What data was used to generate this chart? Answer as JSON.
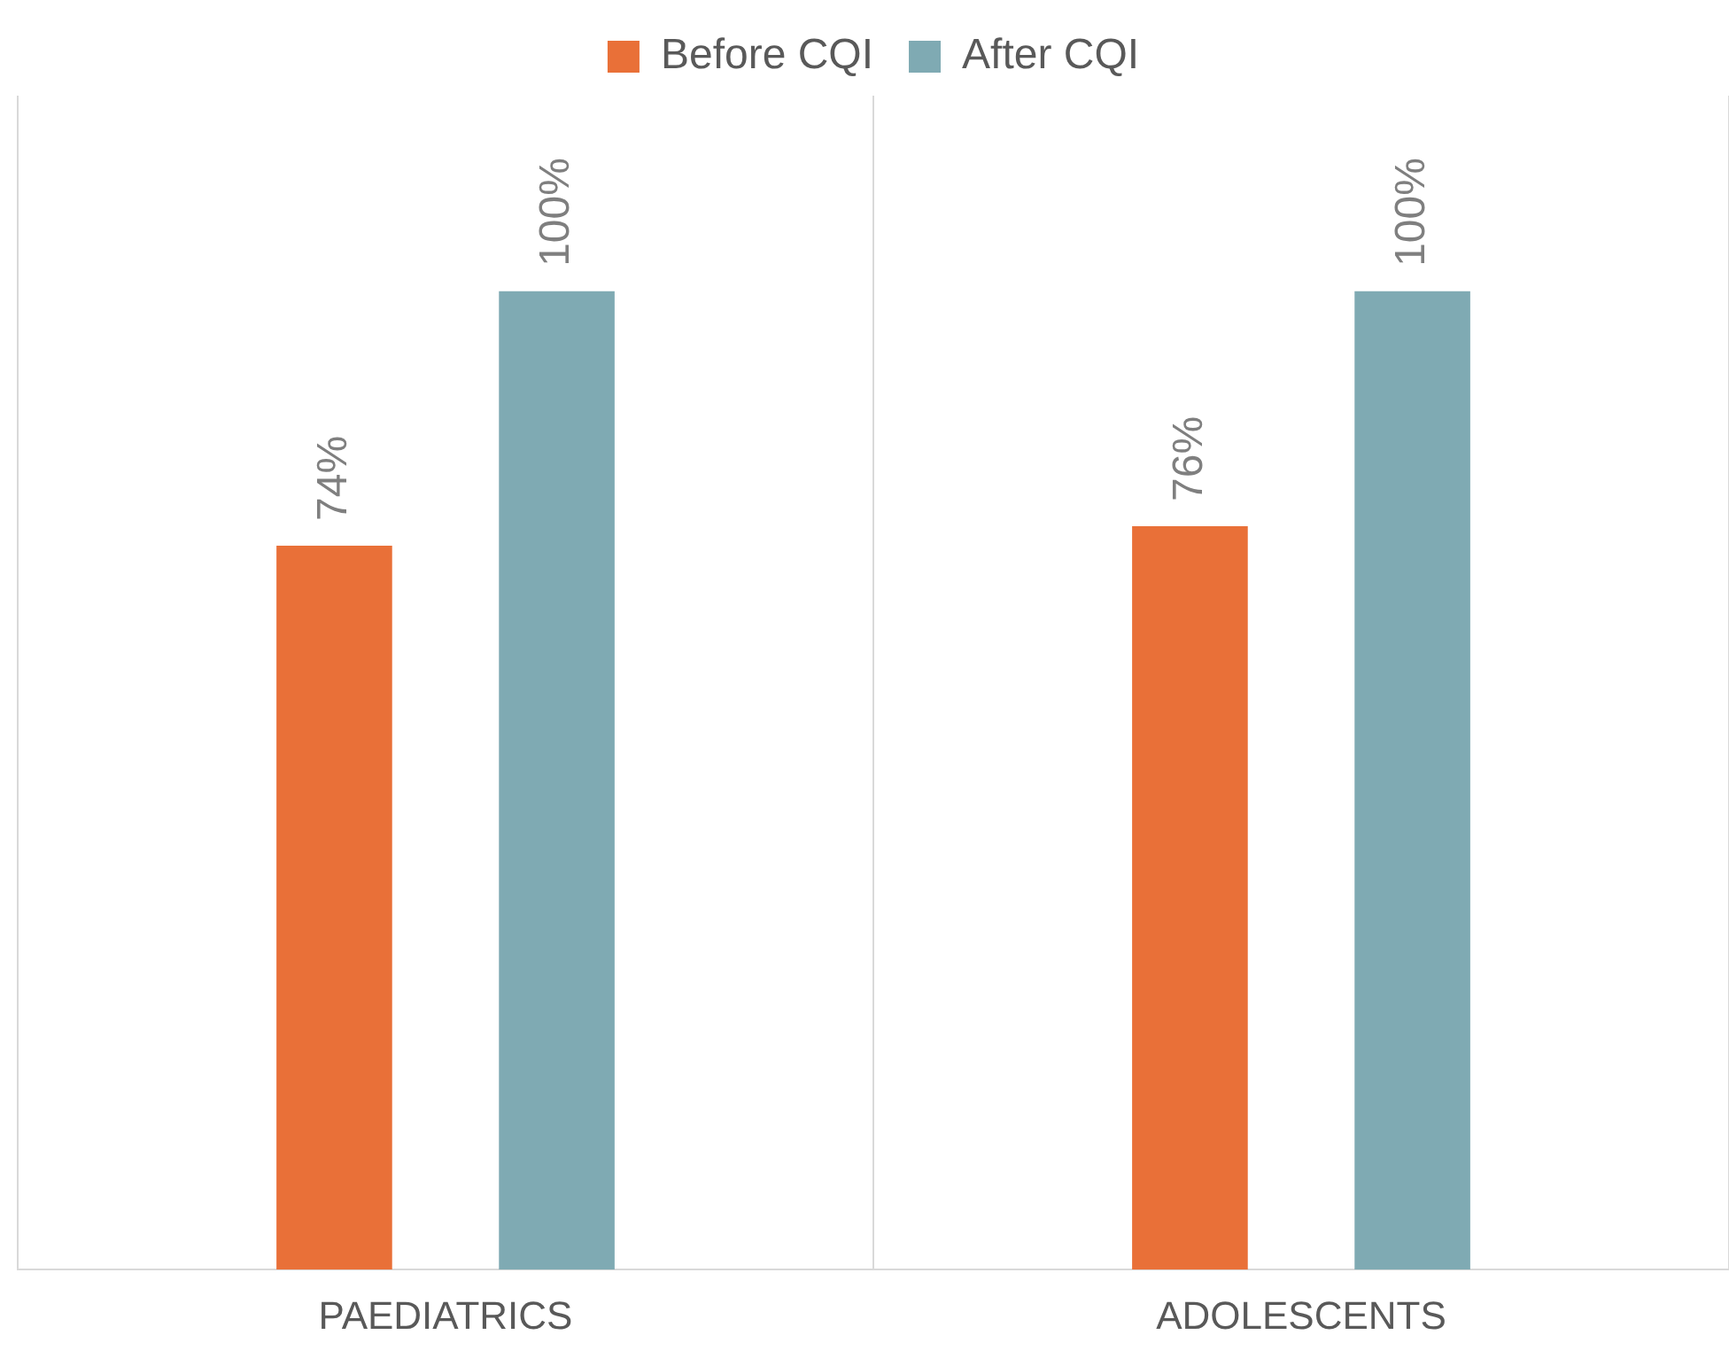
{
  "chart_data": {
    "type": "bar",
    "categories": [
      "PAEDIATRICS",
      "ADOLESCENTS"
    ],
    "series": [
      {
        "name": "Before CQI",
        "color": "#e97038",
        "values": [
          74,
          76
        ],
        "value_labels": [
          "74%",
          "76%"
        ]
      },
      {
        "name": "After CQI",
        "color": "#7faab3",
        "values": [
          100,
          100
        ],
        "value_labels": [
          "100%",
          "100%"
        ]
      }
    ],
    "grid": "x",
    "legend": "top",
    "tick_labels": "x"
  }
}
